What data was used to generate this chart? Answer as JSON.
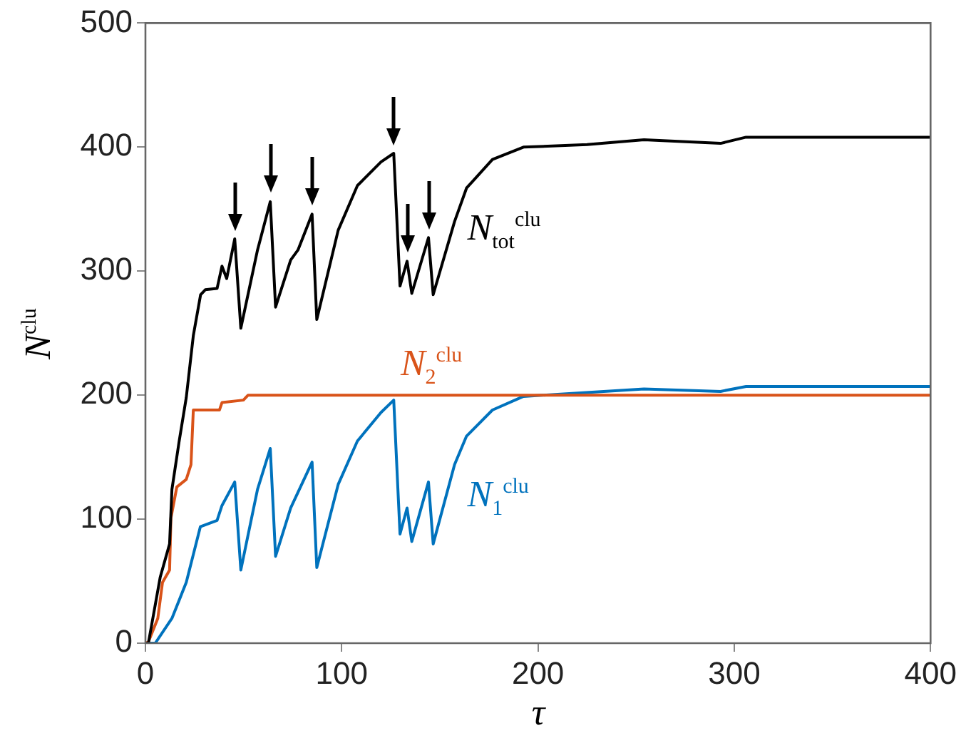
{
  "chart_data": {
    "type": "line",
    "xlabel": "τ",
    "ylabel": "N$^{clu}$",
    "xlim": [
      0,
      400
    ],
    "xticks": [
      0,
      100,
      200,
      300,
      400
    ],
    "ylim": [
      0,
      500
    ],
    "yticks": [
      0,
      100,
      200,
      300,
      400,
      500
    ],
    "grid": false,
    "marker": "none",
    "line_style": "solid",
    "series": [
      {
        "name": "N$_{tot}$$^{clu}$",
        "color": "#000000",
        "x": [
          0,
          1.5,
          7.5,
          12.3,
          13.5,
          17.2,
          20.8,
          24.4,
          28.1,
          30.5,
          36.5,
          39,
          41.4,
          45.5,
          48.6,
          57.1,
          63.6,
          66.3,
          74,
          77.7,
          84.9,
          87.3,
          98.2,
          108,
          120,
          126.5,
          129.7,
          133.3,
          135.7,
          144.2,
          146.6,
          157.5,
          163.6,
          176.8,
          192.6,
          225,
          254,
          293,
          306,
          400
        ],
        "values": [
          0,
          0,
          53,
          80,
          124,
          163,
          198,
          248,
          281,
          285,
          286,
          304,
          294,
          326,
          254,
          317,
          356,
          271,
          309,
          317,
          346,
          261,
          333,
          369,
          388,
          395,
          288,
          308,
          282,
          327,
          281,
          340,
          367,
          390,
          400,
          402,
          406,
          403,
          408,
          408
        ]
      },
      {
        "name": "N$_{2}$$^{clu}$",
        "color": "#d95319",
        "x": [
          0,
          1.5,
          6.3,
          8.7,
          12.3,
          13,
          16,
          20.8,
          23.2,
          24.4,
          37.7,
          39,
          49.9,
          52.3,
          400
        ],
        "values": [
          0,
          1,
          20,
          49,
          59,
          101,
          126,
          132,
          144,
          188,
          188,
          194,
          196,
          200,
          200
        ]
      },
      {
        "name": "N$_{1}$$^{clu}$",
        "color": "#0072bd",
        "x": [
          0,
          5,
          13.5,
          20.8,
          28,
          36.5,
          39,
          45.5,
          48.6,
          57.1,
          63.6,
          66.3,
          74,
          84.9,
          87.3,
          98.2,
          108,
          120,
          126.5,
          129.7,
          133.3,
          135.7,
          144.2,
          146.6,
          157.5,
          163.6,
          176.8,
          192.6,
          254,
          293,
          306,
          400
        ],
        "values": [
          0,
          0,
          20,
          49,
          94,
          99,
          111,
          130,
          59,
          124,
          157,
          70,
          109,
          146,
          61,
          128,
          163,
          186,
          196,
          88,
          109,
          82,
          130,
          80,
          144,
          167,
          188,
          199,
          205,
          203,
          207,
          207
        ]
      }
    ]
  }
}
